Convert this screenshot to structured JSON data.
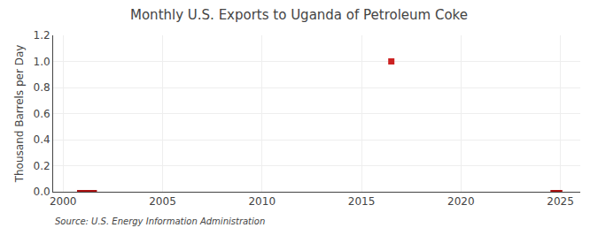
{
  "chart_data": {
    "type": "line",
    "title": "Monthly U.S. Exports to Uganda of Petroleum Coke",
    "y_label": "Thousand Barrels per Day",
    "annotations": [
      "Source: U.S. Energy Information Administration"
    ],
    "series": [
      {
        "type": "line",
        "color": "#aa1111",
        "x": [
          2000.7,
          2001.7
        ],
        "values": [
          0.0,
          0.0
        ]
      },
      {
        "type": "line",
        "color": "#aa1111",
        "x": [
          2024.5,
          2025.1
        ],
        "values": [
          0.0,
          0.0
        ]
      },
      {
        "type": "scatter",
        "marker": "square",
        "color": "#cc2222",
        "x": [
          2016.5
        ],
        "values": [
          1.0
        ]
      }
    ],
    "xlim": [
      1999.5,
      2026
    ],
    "xticks": [
      2000,
      2005,
      2010,
      2015,
      2020,
      2025
    ],
    "ylim": [
      0.0,
      1.2
    ],
    "yticks": [
      {
        "value": 0.0,
        "label": "0.0"
      },
      0.2,
      0.4,
      0.6,
      0.8,
      {
        "value": 1.0,
        "label": "1.0"
      },
      1.2
    ],
    "grid": true
  }
}
